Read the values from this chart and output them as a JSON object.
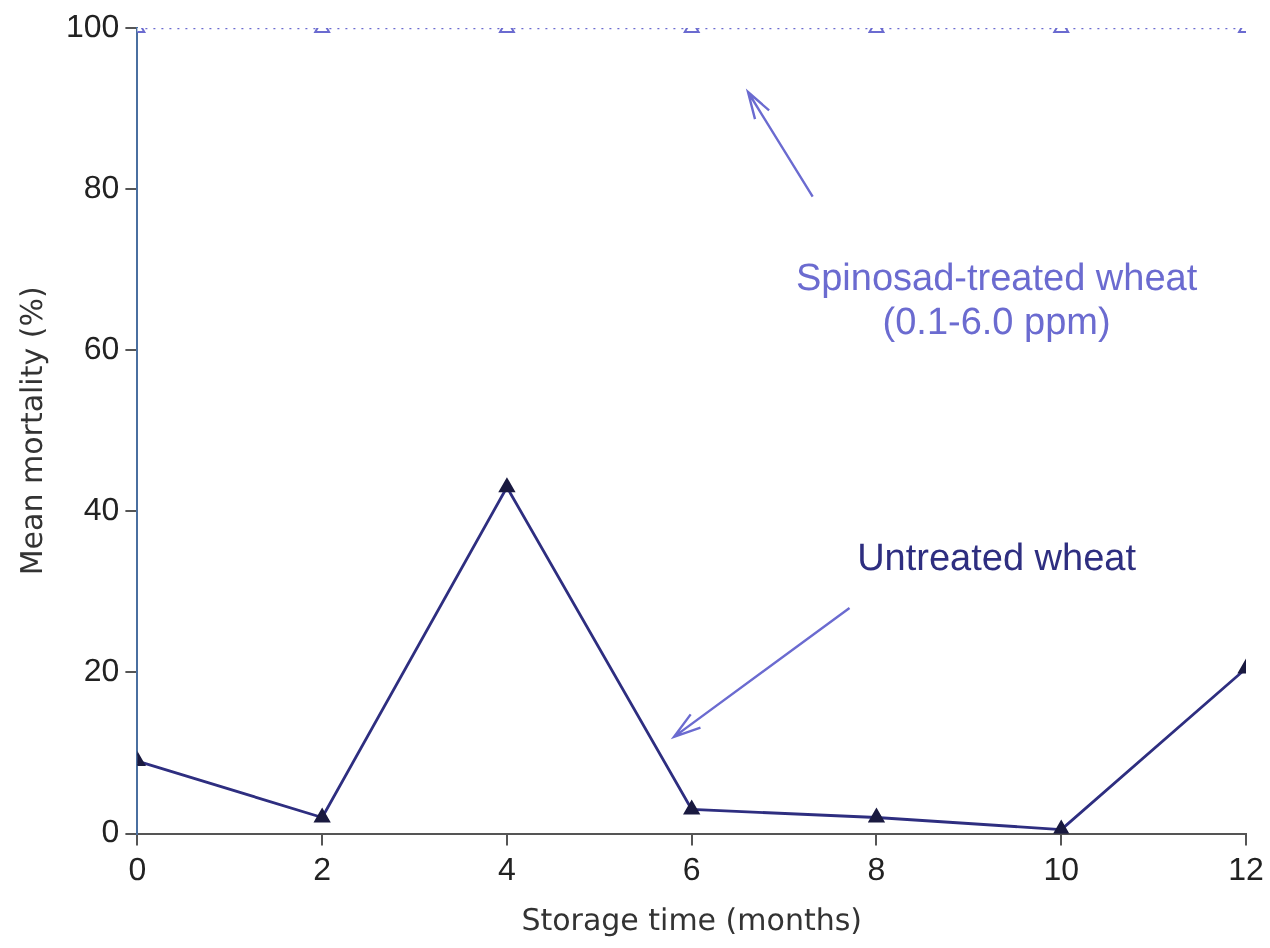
{
  "chart_data": {
    "type": "line",
    "xlabel": "Storage time (months)",
    "ylabel": "Mean mortality (%)",
    "x": [
      0,
      2,
      4,
      6,
      8,
      10,
      12
    ],
    "xlim": [
      0,
      12
    ],
    "xticks": [
      0,
      2,
      4,
      6,
      8,
      10,
      12
    ],
    "ylim": [
      0,
      100
    ],
    "yticks": [
      0,
      20,
      40,
      60,
      80,
      100
    ],
    "grid": false,
    "legend": false,
    "marker": "triangle",
    "series": [
      {
        "name": "Spinosad-treated wheat (0.1-6.0 ppm)",
        "color": "#6b6bd0",
        "line_style": "dotted",
        "values": [
          100,
          100,
          100,
          100,
          100,
          100,
          100
        ]
      },
      {
        "name": "Untreated wheat",
        "color": "#2e2e80",
        "line_style": "solid",
        "values": [
          9,
          2,
          43,
          3,
          2,
          0.5,
          20.5
        ]
      }
    ]
  }
}
